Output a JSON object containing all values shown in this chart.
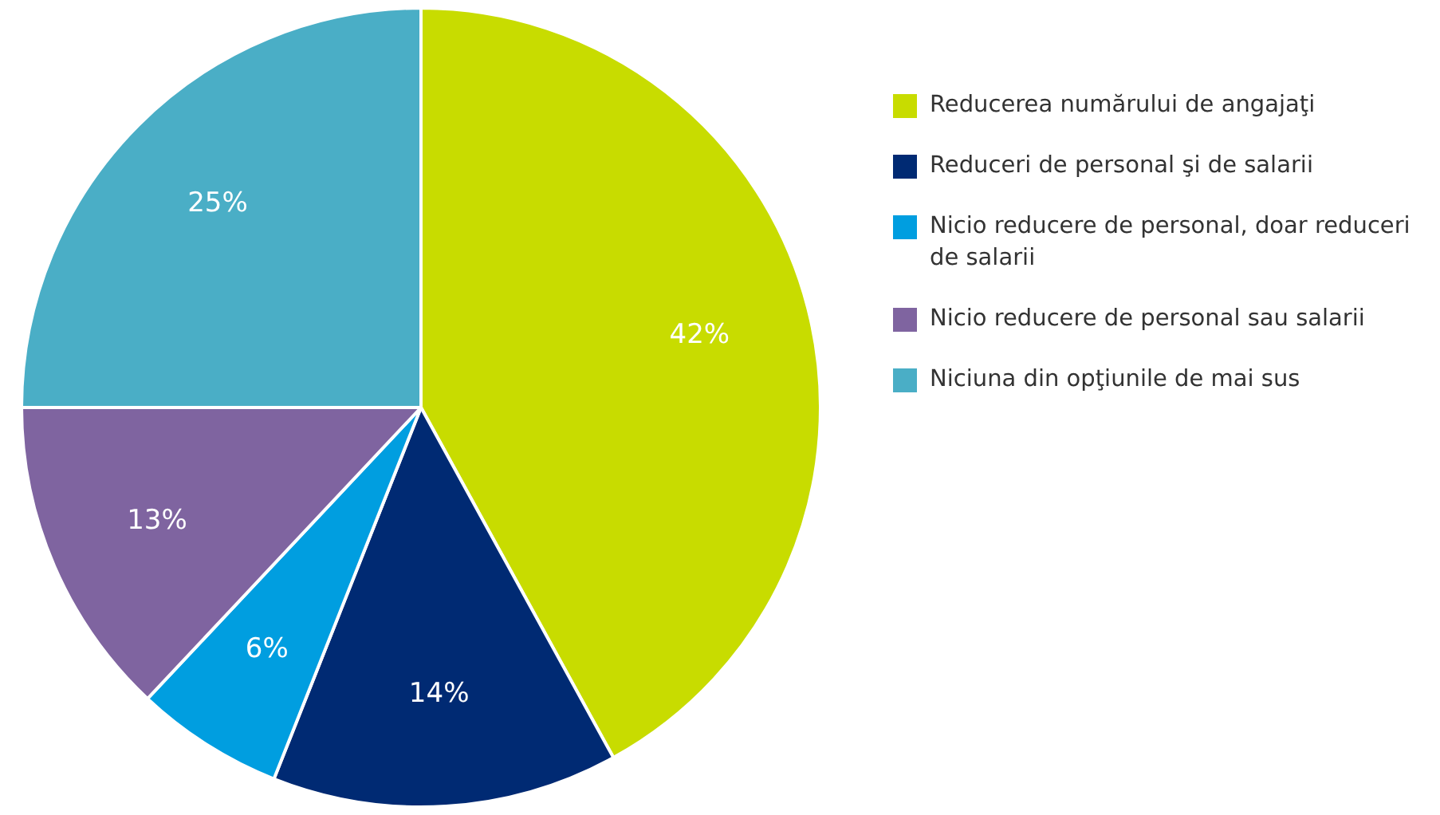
{
  "chart_data": {
    "type": "pie",
    "categories": [
      "Reducerea numărului de angajaţi",
      "Reduceri de personal şi de salarii",
      "Nicio reducere de personal, doar reduceri de salarii",
      "Nicio reducere de personal sau salarii",
      "Niciuna din opţiunile de mai sus"
    ],
    "values": [
      42,
      14,
      6,
      13,
      25
    ],
    "colors": [
      "#c8dc00",
      "#002a73",
      "#009ee0",
      "#7f64a0",
      "#4aaec6"
    ],
    "value_labels": [
      "42%",
      "14%",
      "6%",
      "13%",
      "25%"
    ],
    "legend": "right"
  }
}
